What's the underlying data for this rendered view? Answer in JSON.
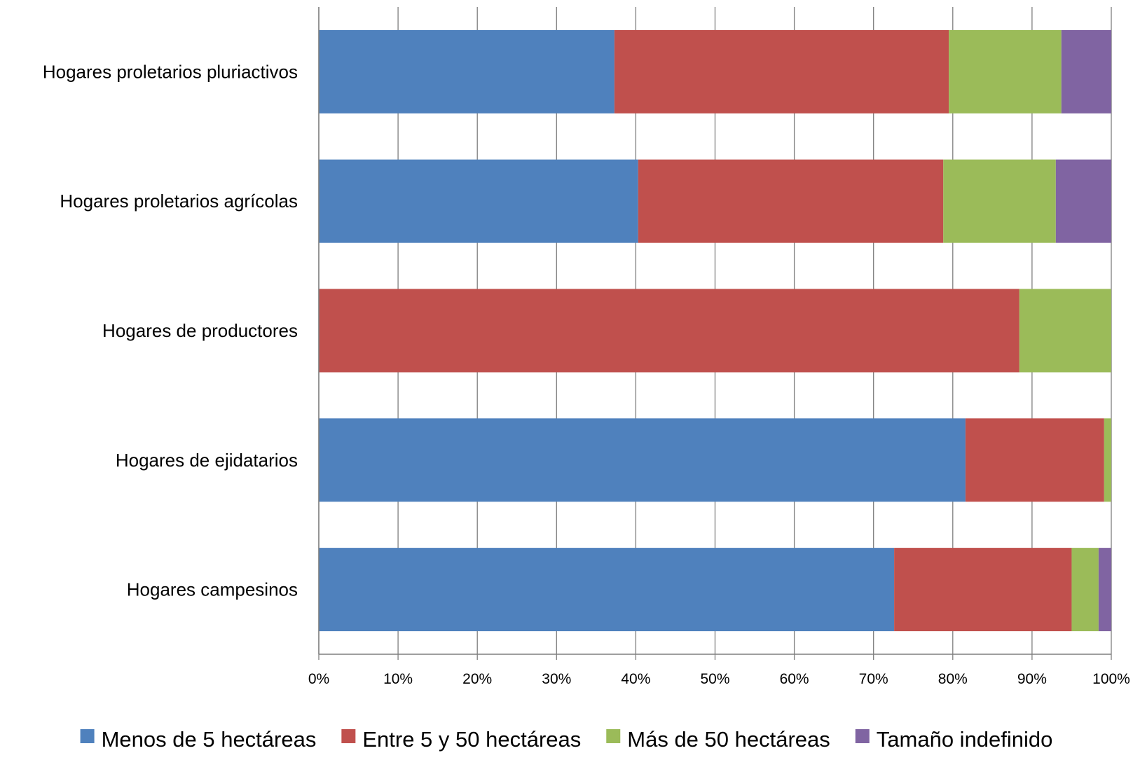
{
  "chart_data": {
    "type": "bar",
    "orientation": "horizontal",
    "stacked": "percent",
    "title": "",
    "xlabel": "",
    "ylabel": "",
    "xlim": [
      0,
      100
    ],
    "x_ticks": [
      "0%",
      "10%",
      "20%",
      "30%",
      "40%",
      "50%",
      "60%",
      "70%",
      "80%",
      "90%",
      "100%"
    ],
    "grid": "vertical",
    "legend_position": "bottom",
    "categories": [
      "Hogares proletarios pluriactivos",
      "Hogares proletarios agrícolas",
      "Hogares de productores",
      "Hogares de ejidatarios",
      "Hogares campesinos"
    ],
    "series": [
      {
        "name": "Menos de 5 hectáreas",
        "color": "#4F81BD",
        "values": [
          37.3,
          40.3,
          0,
          81.6,
          72.6
        ]
      },
      {
        "name": "Entre 5 y 50 hectáreas",
        "color": "#C0504D",
        "values": [
          42.2,
          38.5,
          88.4,
          17.5,
          22.4
        ]
      },
      {
        "name": "Más de 50 hectáreas",
        "color": "#9BBB59",
        "values": [
          14.2,
          14.2,
          11.6,
          0.9,
          3.4
        ]
      },
      {
        "name": "Tamaño indefinido",
        "color": "#8064A2",
        "values": [
          6.3,
          7.0,
          0,
          0,
          1.6
        ]
      }
    ]
  }
}
